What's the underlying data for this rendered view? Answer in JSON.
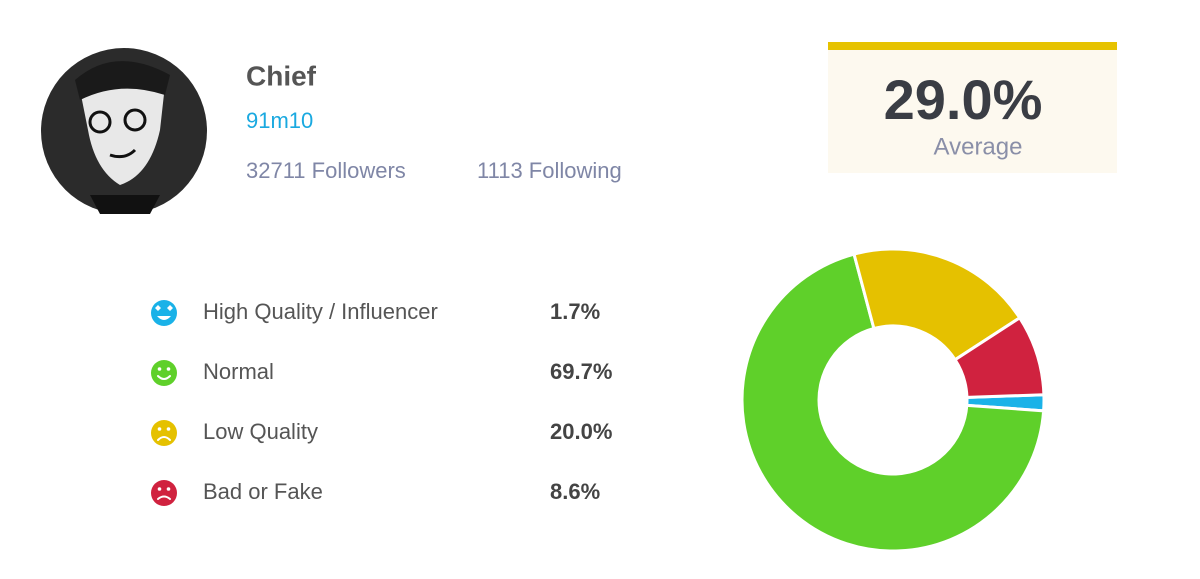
{
  "profile": {
    "name": "Chief",
    "handle": "91m10",
    "followers": "32711 Followers",
    "following": "1113 Following"
  },
  "average": {
    "value": "29.0%",
    "label": "Average"
  },
  "chart_data": {
    "type": "pie",
    "donut": true,
    "categories": [
      "High Quality / Influencer",
      "Normal",
      "Low Quality",
      "Bad or Fake"
    ],
    "values": [
      1.7,
      69.7,
      20.0,
      8.6
    ],
    "value_labels": [
      "1.7%",
      "69.7%",
      "20.0%",
      "8.6%"
    ],
    "colors": [
      "#1ab2e8",
      "#5fd02a",
      "#e5c100",
      "#d0223f"
    ]
  }
}
